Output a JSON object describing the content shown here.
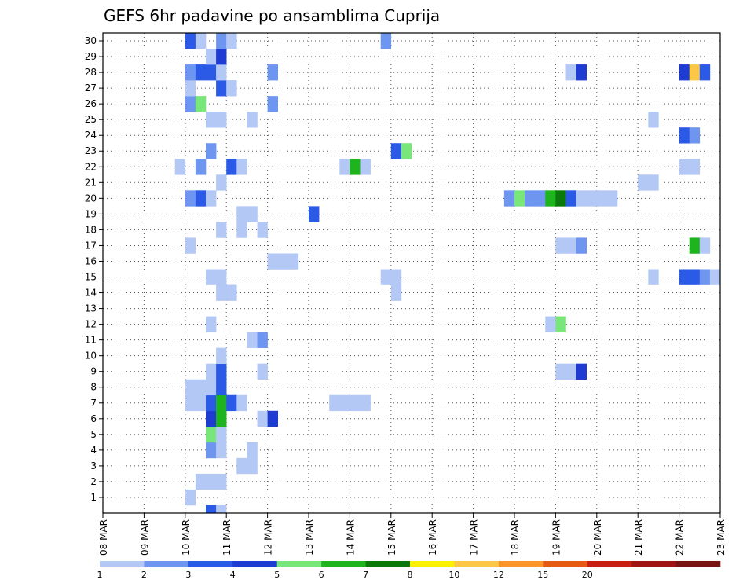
{
  "chart_data": {
    "type": "heatmap",
    "title": "GEFS 6hr padavine po ansamblima Cuprija",
    "xlabel": "",
    "ylabel": "",
    "x_ticks": [
      "08 MAR",
      "09 MAR",
      "10 MAR",
      "11 MAR",
      "12 MAR",
      "13 MAR",
      "14 MAR",
      "15 MAR",
      "16 MAR",
      "17 MAR",
      "18 MAR",
      "19 MAR",
      "20 MAR",
      "21 MAR",
      "22 MAR",
      "23 MAR"
    ],
    "y_ticks": [
      1,
      2,
      3,
      4,
      5,
      6,
      7,
      8,
      9,
      10,
      11,
      12,
      13,
      14,
      15,
      16,
      17,
      18,
      19,
      20,
      21,
      22,
      23,
      24,
      25,
      26,
      27,
      28,
      29,
      30
    ],
    "time_step_hours": 6,
    "members": 31,
    "grid": true,
    "colorbar": {
      "placement": "bottom",
      "levels": [
        "1",
        "2",
        "3",
        "4",
        "5",
        "6",
        "7",
        "8",
        "10",
        "12",
        "15",
        "20"
      ],
      "colors": [
        "#b4c8f5",
        "#6e96f0",
        "#2a5ae6",
        "#1e3cd2",
        "#78e678",
        "#1eb41e",
        "#0a780a",
        "#faf000",
        "#fac846",
        "#fa9628",
        "#e65a14",
        "#c81e14",
        "#a01414",
        "#781414"
      ]
    },
    "cells": [
      [
        2.5,
        0,
        3
      ],
      [
        2.75,
        0,
        1
      ],
      [
        2.0,
        1,
        1
      ],
      [
        2.25,
        2,
        1
      ],
      [
        2.5,
        2,
        1
      ],
      [
        2.75,
        2,
        1
      ],
      [
        3.25,
        3,
        1
      ],
      [
        3.5,
        3,
        1
      ],
      [
        2.5,
        4,
        2
      ],
      [
        2.75,
        4,
        1
      ],
      [
        3.5,
        4,
        1
      ],
      [
        2.5,
        5,
        5
      ],
      [
        2.75,
        5,
        1
      ],
      [
        2.5,
        6,
        4
      ],
      [
        2.75,
        6,
        6
      ],
      [
        3.75,
        6,
        1
      ],
      [
        4.0,
        6,
        4
      ],
      [
        2.0,
        7,
        1
      ],
      [
        2.25,
        7,
        1
      ],
      [
        2.5,
        7,
        3
      ],
      [
        2.75,
        7,
        6
      ],
      [
        3.0,
        7,
        3
      ],
      [
        3.25,
        7,
        1
      ],
      [
        5.5,
        7,
        1
      ],
      [
        5.75,
        7,
        1
      ],
      [
        6.0,
        7,
        1
      ],
      [
        6.25,
        7,
        1
      ],
      [
        2.0,
        8,
        1
      ],
      [
        2.25,
        8,
        1
      ],
      [
        2.5,
        8,
        1
      ],
      [
        2.75,
        8,
        3
      ],
      [
        2.5,
        9,
        1
      ],
      [
        2.75,
        9,
        3
      ],
      [
        3.75,
        9,
        1
      ],
      [
        11.0,
        9,
        1
      ],
      [
        11.25,
        9,
        1
      ],
      [
        11.5,
        9,
        4
      ],
      [
        2.75,
        10,
        1
      ],
      [
        3.5,
        11,
        1
      ],
      [
        3.75,
        11,
        2
      ],
      [
        2.5,
        12,
        1
      ],
      [
        10.75,
        12,
        1
      ],
      [
        11.0,
        12,
        5
      ],
      [
        2.75,
        14,
        1
      ],
      [
        3.0,
        14,
        1
      ],
      [
        7.0,
        14,
        1
      ],
      [
        2.5,
        15,
        1
      ],
      [
        2.75,
        15,
        1
      ],
      [
        6.75,
        15,
        1
      ],
      [
        7.0,
        15,
        1
      ],
      [
        13.25,
        15,
        1
      ],
      [
        14.0,
        15,
        3
      ],
      [
        14.25,
        15,
        3
      ],
      [
        14.5,
        15,
        2
      ],
      [
        14.75,
        15,
        1
      ],
      [
        4.0,
        16,
        1
      ],
      [
        4.25,
        16,
        1
      ],
      [
        4.5,
        16,
        1
      ],
      [
        2.0,
        17,
        1
      ],
      [
        11.0,
        17,
        1
      ],
      [
        11.25,
        17,
        1
      ],
      [
        11.5,
        17,
        2
      ],
      [
        14.25,
        17,
        6
      ],
      [
        14.5,
        17,
        1
      ],
      [
        2.75,
        18,
        1
      ],
      [
        3.25,
        18,
        1
      ],
      [
        3.75,
        18,
        1
      ],
      [
        3.25,
        19,
        1
      ],
      [
        3.5,
        19,
        1
      ],
      [
        5.0,
        19,
        3
      ],
      [
        2.0,
        20,
        2
      ],
      [
        2.25,
        20,
        3
      ],
      [
        2.5,
        20,
        1
      ],
      [
        9.75,
        20,
        2
      ],
      [
        10.0,
        20,
        5
      ],
      [
        10.25,
        20,
        2
      ],
      [
        10.5,
        20,
        2
      ],
      [
        10.75,
        20,
        6
      ],
      [
        11.0,
        20,
        7
      ],
      [
        11.25,
        20,
        3
      ],
      [
        11.5,
        20,
        1
      ],
      [
        11.75,
        20,
        1
      ],
      [
        12.0,
        20,
        1
      ],
      [
        12.25,
        20,
        1
      ],
      [
        2.75,
        21,
        1
      ],
      [
        13.0,
        21,
        1
      ],
      [
        13.25,
        21,
        1
      ],
      [
        1.75,
        22,
        1
      ],
      [
        2.25,
        22,
        2
      ],
      [
        3.0,
        22,
        3
      ],
      [
        3.25,
        22,
        1
      ],
      [
        5.75,
        22,
        1
      ],
      [
        6.0,
        22,
        6
      ],
      [
        6.25,
        22,
        1
      ],
      [
        14.0,
        22,
        1
      ],
      [
        14.25,
        22,
        1
      ],
      [
        2.5,
        23,
        2
      ],
      [
        7.0,
        23,
        3
      ],
      [
        7.25,
        23,
        5
      ],
      [
        14.0,
        24,
        3
      ],
      [
        14.25,
        24,
        2
      ],
      [
        15.0,
        24,
        6
      ],
      [
        2.5,
        25,
        1
      ],
      [
        2.75,
        25,
        1
      ],
      [
        3.5,
        25,
        1
      ],
      [
        13.25,
        25,
        1
      ],
      [
        2.0,
        26,
        2
      ],
      [
        2.25,
        26,
        5
      ],
      [
        4.0,
        26,
        2
      ],
      [
        2.0,
        27,
        1
      ],
      [
        2.75,
        27,
        3
      ],
      [
        3.0,
        27,
        1
      ],
      [
        2.0,
        28,
        2
      ],
      [
        2.25,
        28,
        3
      ],
      [
        2.5,
        28,
        3
      ],
      [
        2.75,
        28,
        1
      ],
      [
        4.0,
        28,
        2
      ],
      [
        11.25,
        28,
        1
      ],
      [
        11.5,
        28,
        4
      ],
      [
        14.0,
        28,
        4
      ],
      [
        14.25,
        28,
        9
      ],
      [
        14.5,
        28,
        3
      ],
      [
        2.5,
        29,
        1
      ],
      [
        2.75,
        29,
        4
      ],
      [
        2.0,
        30,
        3
      ],
      [
        2.25,
        30,
        1
      ],
      [
        2.75,
        30,
        2
      ],
      [
        3.0,
        30,
        1
      ],
      [
        6.75,
        30,
        2
      ],
      [
        15.0,
        30,
        2
      ]
    ]
  }
}
